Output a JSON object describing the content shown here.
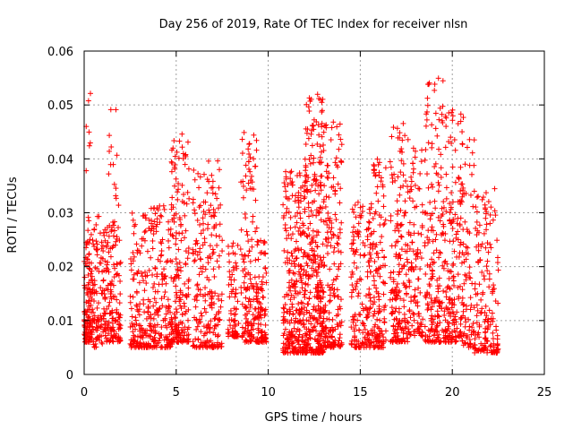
{
  "chart_data": {
    "type": "scatter",
    "title": "Day 256 of 2019, Rate Of TEC Index for receiver nlsn",
    "xlabel": "GPS time / hours",
    "ylabel": "ROTI / TECUs",
    "xlim": [
      0,
      25
    ],
    "ylim": [
      0,
      0.06
    ],
    "xticks": [
      0,
      5,
      10,
      15,
      20,
      25
    ],
    "xtick_labels": [
      "0",
      "5",
      "10",
      "15",
      "20",
      "25"
    ],
    "yticks": [
      0,
      0.01,
      0.02,
      0.03,
      0.04,
      0.05,
      0.06
    ],
    "ytick_labels": [
      "0",
      "0.01",
      "0.02",
      "0.03",
      "0.04",
      "0.05",
      "0.06"
    ],
    "grid": true,
    "marker": "+",
    "color": "#ff0000",
    "series": [
      {
        "name": "ROTI",
        "clusters": [
          {
            "x": [
              0.0,
              0.5
            ],
            "y": [
              0.006,
              0.025
            ],
            "n": 130
          },
          {
            "x": [
              0.1,
              0.4
            ],
            "y": [
              0.025,
              0.053
            ],
            "n": 12
          },
          {
            "x": [
              0.5,
              1.0
            ],
            "y": [
              0.005,
              0.03
            ],
            "n": 70
          },
          {
            "x": [
              1.0,
              2.0
            ],
            "y": [
              0.006,
              0.028
            ],
            "n": 160
          },
          {
            "x": [
              1.3,
              1.9
            ],
            "y": [
              0.028,
              0.05
            ],
            "n": 16
          },
          {
            "x": [
              2.5,
              3.3
            ],
            "y": [
              0.005,
              0.03
            ],
            "n": 110
          },
          {
            "x": [
              3.3,
              4.7
            ],
            "y": [
              0.005,
              0.032
            ],
            "n": 200
          },
          {
            "x": [
              4.7,
              5.7
            ],
            "y": [
              0.006,
              0.045
            ],
            "n": 190
          },
          {
            "x": [
              5.9,
              7.5
            ],
            "y": [
              0.005,
              0.04
            ],
            "n": 220
          },
          {
            "x": [
              7.8,
              8.4
            ],
            "y": [
              0.007,
              0.026
            ],
            "n": 70
          },
          {
            "x": [
              8.5,
              9.4
            ],
            "y": [
              0.006,
              0.045
            ],
            "n": 150
          },
          {
            "x": [
              9.4,
              9.9
            ],
            "y": [
              0.006,
              0.025
            ],
            "n": 90
          },
          {
            "x": [
              10.8,
              12.0
            ],
            "y": [
              0.004,
              0.038
            ],
            "n": 280
          },
          {
            "x": [
              12.0,
              13.0
            ],
            "y": [
              0.004,
              0.052
            ],
            "n": 330
          },
          {
            "x": [
              13.0,
              14.0
            ],
            "y": [
              0.005,
              0.047
            ],
            "n": 190
          },
          {
            "x": [
              14.5,
              15.7
            ],
            "y": [
              0.005,
              0.032
            ],
            "n": 170
          },
          {
            "x": [
              15.7,
              16.4
            ],
            "y": [
              0.005,
              0.04
            ],
            "n": 130
          },
          {
            "x": [
              16.6,
              17.6
            ],
            "y": [
              0.006,
              0.049
            ],
            "n": 180
          },
          {
            "x": [
              17.6,
              18.4
            ],
            "y": [
              0.007,
              0.042
            ],
            "n": 110
          },
          {
            "x": [
              18.5,
              19.5
            ],
            "y": [
              0.006,
              0.055
            ],
            "n": 180
          },
          {
            "x": [
              19.5,
              20.6
            ],
            "y": [
              0.006,
              0.05
            ],
            "n": 200
          },
          {
            "x": [
              20.6,
              21.2
            ],
            "y": [
              0.005,
              0.046
            ],
            "n": 70
          },
          {
            "x": [
              21.2,
              22.5
            ],
            "y": [
              0.004,
              0.035
            ],
            "n": 170
          }
        ]
      }
    ]
  }
}
